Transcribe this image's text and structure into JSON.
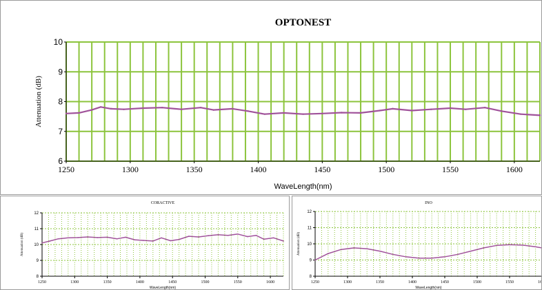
{
  "chart_data": [
    {
      "type": "line",
      "title": "OPTONEST",
      "xlabel": "WaveLength(nm)",
      "ylabel": "Attenuation (dB)",
      "xlim": [
        1250,
        1620
      ],
      "ylim": [
        6,
        10
      ],
      "xticks": [
        1250,
        1300,
        1350,
        1400,
        1450,
        1500,
        1550,
        1600
      ],
      "yticks": [
        6,
        7,
        8,
        9,
        10
      ],
      "grid": true,
      "colors": {
        "line": "#a0529a",
        "grid": "#8cc43c"
      },
      "series": [
        {
          "x": [
            1250,
            1260,
            1270,
            1277,
            1285,
            1295,
            1310,
            1325,
            1340,
            1355,
            1365,
            1380,
            1392,
            1405,
            1420,
            1435,
            1450,
            1465,
            1480,
            1495,
            1505,
            1520,
            1535,
            1550,
            1562,
            1577,
            1590,
            1605,
            1620
          ],
          "values": [
            7.6,
            7.62,
            7.72,
            7.82,
            7.76,
            7.74,
            7.78,
            7.8,
            7.74,
            7.8,
            7.72,
            7.76,
            7.68,
            7.58,
            7.62,
            7.58,
            7.6,
            7.63,
            7.62,
            7.7,
            7.76,
            7.7,
            7.74,
            7.78,
            7.74,
            7.8,
            7.68,
            7.58,
            7.54
          ]
        }
      ]
    },
    {
      "type": "line",
      "title": "CORACTIVE",
      "xlabel": "WaveLength(nm)",
      "ylabel": "Attenuation (dB)",
      "xlim": [
        1250,
        1620
      ],
      "ylim": [
        8,
        12
      ],
      "xticks": [
        1250,
        1300,
        1350,
        1400,
        1450,
        1500,
        1550,
        1600
      ],
      "yticks": [
        8,
        9,
        10,
        11,
        12
      ],
      "grid": true,
      "colors": {
        "line": "#a0529a",
        "grid": "#8cc43c"
      },
      "series": [
        {
          "x": [
            1250,
            1262,
            1275,
            1290,
            1305,
            1320,
            1335,
            1350,
            1365,
            1378,
            1392,
            1405,
            1420,
            1433,
            1447,
            1460,
            1475,
            1490,
            1505,
            1520,
            1535,
            1550,
            1565,
            1578,
            1590,
            1605,
            1620
          ],
          "values": [
            10.1,
            10.22,
            10.36,
            10.42,
            10.44,
            10.48,
            10.44,
            10.46,
            10.36,
            10.46,
            10.3,
            10.26,
            10.22,
            10.42,
            10.24,
            10.32,
            10.52,
            10.48,
            10.56,
            10.62,
            10.58,
            10.66,
            10.5,
            10.58,
            10.34,
            10.42,
            10.22
          ]
        }
      ]
    },
    {
      "type": "line",
      "title": "INO",
      "xlabel": "WaveLength(nm)",
      "ylabel": "Attenuation (dB)",
      "xlim": [
        1250,
        1600
      ],
      "ylim": [
        8,
        12
      ],
      "xticks": [
        1250,
        1300,
        1350,
        1400,
        1450,
        1500,
        1550,
        1600
      ],
      "yticks": [
        8,
        9,
        10,
        11,
        12
      ],
      "grid": true,
      "colors": {
        "line": "#a0529a",
        "grid": "#8cc43c"
      },
      "series": [
        {
          "x": [
            1250,
            1270,
            1290,
            1310,
            1330,
            1350,
            1370,
            1390,
            1410,
            1430,
            1450,
            1470,
            1490,
            1510,
            1530,
            1550,
            1570,
            1590,
            1600
          ],
          "values": [
            9.0,
            9.4,
            9.65,
            9.75,
            9.7,
            9.55,
            9.35,
            9.2,
            9.12,
            9.12,
            9.2,
            9.35,
            9.55,
            9.75,
            9.9,
            9.95,
            9.92,
            9.82,
            9.75
          ]
        }
      ]
    }
  ]
}
